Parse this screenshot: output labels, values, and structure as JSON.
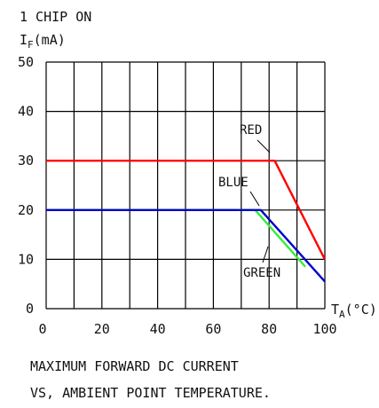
{
  "chart_data": {
    "type": "line",
    "header_line1": "1 CHIP ON",
    "ylabel_main": "I",
    "ylabel_sub": "F",
    "ylabel_unit": "(mA)",
    "xlabel_main": "T",
    "xlabel_sub": "A",
    "xlabel_unit": "(°C)",
    "caption_line1": "MAXIMUM FORWARD DC CURRENT",
    "caption_line2": "VS, AMBIENT POINT TEMPERATURE.",
    "xlim": [
      0,
      100
    ],
    "ylim": [
      0,
      50
    ],
    "x_ticks": [
      "0",
      "20",
      "40",
      "60",
      "80",
      "100"
    ],
    "y_ticks": [
      "0",
      "10",
      "20",
      "30",
      "40",
      "50"
    ],
    "grid": true,
    "series": [
      {
        "name": "RED",
        "color": "#ff0000",
        "x": [
          0,
          82,
          100
        ],
        "y": [
          30,
          30,
          10
        ]
      },
      {
        "name": "BLUE",
        "color": "#0000cc",
        "x": [
          0,
          77,
          100
        ],
        "y": [
          20,
          20,
          5.5
        ]
      },
      {
        "name": "GREEN",
        "color": "#33ee33",
        "x": [
          0,
          75,
          93
        ],
        "y": [
          20,
          20,
          8.5
        ]
      }
    ]
  }
}
